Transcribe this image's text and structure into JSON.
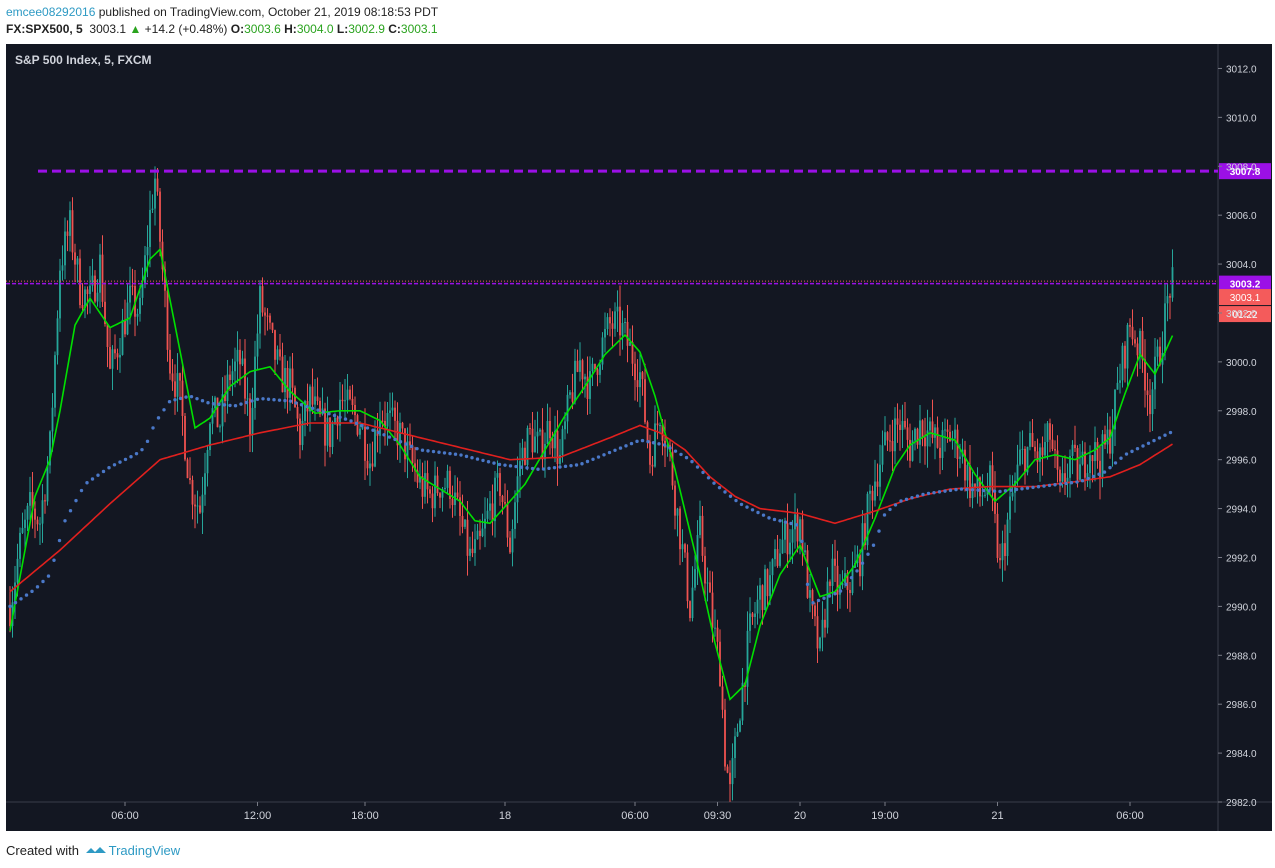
{
  "header": {
    "author": "emcee08292016",
    "published_text": " published on TradingView.com, October 21, 2019 08:18:53 PDT"
  },
  "symbol_line": {
    "symbol": "FX:SPX500, 5",
    "last": "3003.1",
    "change": "+14.2 (+0.48%)",
    "o_label": "O:",
    "o": "3003.6",
    "h_label": "H:",
    "h": "3004.0",
    "l_label": "L:",
    "l": "3002.9",
    "c_label": "C:",
    "c": "3003.1"
  },
  "footer": {
    "created": "Created with",
    "brand": "TradingView"
  },
  "colors": {
    "background": "#131722",
    "up": "#26a69a",
    "down": "#ef5350",
    "ma_fast": "#00e000",
    "ma_mid": "#e0201e",
    "ma_slow": "#4a78c8",
    "level": "#9b10e6",
    "price_tag": "#f45b5b"
  },
  "chart_data": {
    "type": "candlestick",
    "title": "S&P 500 Index, 5, FXCM",
    "ylim": [
      2982,
      3013
    ],
    "y_ticks": [
      2982,
      2984,
      2986,
      2988,
      2990,
      2992,
      2994,
      2996,
      2998,
      3000,
      3002,
      3004,
      3006,
      3008,
      3010,
      3012
    ],
    "y_tick_labels": [
      "2982.0",
      "2984.0",
      "2986.0",
      "2988.0",
      "2990.0",
      "2992.0",
      "2994.0",
      "2996.0",
      "2998.0",
      "3000.0",
      "3002.0",
      "3004.0",
      "3006.0",
      "3008.0",
      "3010.0",
      "3012.0"
    ],
    "x_ticks": [
      {
        "label": "06:00",
        "bar": 46
      },
      {
        "label": "12:00",
        "bar": 99
      },
      {
        "label": "18:00",
        "bar": 142
      },
      {
        "label": "18",
        "bar": 198
      },
      {
        "label": "06:00",
        "bar": 250
      },
      {
        "label": "09:30",
        "bar": 283
      },
      {
        "label": "20",
        "bar": 316
      },
      {
        "label": "19:00",
        "bar": 350
      },
      {
        "label": "21",
        "bar": 395
      },
      {
        "label": "06:00",
        "bar": 448
      }
    ],
    "bar_count": 466,
    "price_levels": [
      {
        "value": 3007.8,
        "label": "3007.8",
        "style": "dashed-thick"
      },
      {
        "value": 3003.2,
        "label": "3003.2",
        "style": "dashed"
      }
    ],
    "last_price": {
      "value": 3003.1,
      "label": "3003.1",
      "countdown": "01:22"
    },
    "keypoints": [
      [
        0,
        2990.0
      ],
      [
        4,
        2992.5
      ],
      [
        8,
        2994.0
      ],
      [
        12,
        2993.5
      ],
      [
        16,
        2996.5
      ],
      [
        20,
        3004.0
      ],
      [
        24,
        3005.5
      ],
      [
        28,
        3003.0
      ],
      [
        32,
        3002.5
      ],
      [
        36,
        3004.0
      ],
      [
        40,
        2999.5
      ],
      [
        44,
        3001.0
      ],
      [
        48,
        3002.5
      ],
      [
        52,
        3002.0
      ],
      [
        56,
        3006.0
      ],
      [
        58,
        3007.5
      ],
      [
        60,
        3005.0
      ],
      [
        64,
        3000.0
      ],
      [
        68,
        2998.5
      ],
      [
        72,
        2995.0
      ],
      [
        76,
        2994.0
      ],
      [
        80,
        2998.0
      ],
      [
        84,
        2997.5
      ],
      [
        88,
        2999.5
      ],
      [
        92,
        3000.0
      ],
      [
        96,
        2997.5
      ],
      [
        100,
        3002.5
      ],
      [
        104,
        3001.0
      ],
      [
        108,
        2999.5
      ],
      [
        112,
        2999.0
      ],
      [
        116,
        2997.0
      ],
      [
        120,
        2998.5
      ],
      [
        124,
        2997.5
      ],
      [
        128,
        2997.0
      ],
      [
        132,
        2998.5
      ],
      [
        136,
        2998.0
      ],
      [
        140,
        2997.5
      ],
      [
        144,
        2996.0
      ],
      [
        148,
        2998.0
      ],
      [
        152,
        2997.5
      ],
      [
        156,
        2997.0
      ],
      [
        160,
        2996.0
      ],
      [
        164,
        2995.0
      ],
      [
        168,
        2994.5
      ],
      [
        172,
        2995.0
      ],
      [
        176,
        2995.0
      ],
      [
        180,
        2993.5
      ],
      [
        184,
        2992.0
      ],
      [
        188,
        2992.5
      ],
      [
        192,
        2994.0
      ],
      [
        196,
        2995.0
      ],
      [
        200,
        2992.5
      ],
      [
        204,
        2996.0
      ],
      [
        208,
        2997.0
      ],
      [
        212,
        2996.5
      ],
      [
        216,
        2997.5
      ],
      [
        220,
        2996.0
      ],
      [
        224,
        2998.5
      ],
      [
        228,
        3000.0
      ],
      [
        232,
        2999.0
      ],
      [
        236,
        3000.5
      ],
      [
        240,
        3001.5
      ],
      [
        244,
        3001.5
      ],
      [
        248,
        3000.5
      ],
      [
        252,
        2999.5
      ],
      [
        256,
        2996.0
      ],
      [
        260,
        2998.0
      ],
      [
        264,
        2996.0
      ],
      [
        268,
        2993.0
      ],
      [
        272,
        2990.0
      ],
      [
        276,
        2993.0
      ],
      [
        280,
        2990.0
      ],
      [
        284,
        2987.5
      ],
      [
        286,
        2984.0
      ],
      [
        288,
        2982.3
      ],
      [
        292,
        2986.0
      ],
      [
        296,
        2989.0
      ],
      [
        300,
        2990.5
      ],
      [
        304,
        2991.0
      ],
      [
        308,
        2992.5
      ],
      [
        312,
        2993.0
      ],
      [
        316,
        2993.5
      ],
      [
        320,
        2990.0
      ],
      [
        324,
        2988.0
      ],
      [
        328,
        2991.5
      ],
      [
        332,
        2990.5
      ],
      [
        336,
        2991.0
      ],
      [
        340,
        2992.0
      ],
      [
        344,
        2994.5
      ],
      [
        348,
        2996.0
      ],
      [
        352,
        2997.0
      ],
      [
        356,
        2997.5
      ],
      [
        360,
        2996.5
      ],
      [
        364,
        2997.5
      ],
      [
        368,
        2997.0
      ],
      [
        372,
        2996.5
      ],
      [
        376,
        2997.0
      ],
      [
        380,
        2996.5
      ],
      [
        384,
        2995.0
      ],
      [
        388,
        2994.5
      ],
      [
        392,
        2995.0
      ],
      [
        396,
        2991.5
      ],
      [
        400,
        2994.0
      ],
      [
        404,
        2996.0
      ],
      [
        408,
        2996.5
      ],
      [
        412,
        2996.0
      ],
      [
        416,
        2997.0
      ],
      [
        420,
        2994.5
      ],
      [
        424,
        2996.0
      ],
      [
        428,
        2995.5
      ],
      [
        432,
        2996.5
      ],
      [
        436,
        2996.0
      ],
      [
        440,
        2997.0
      ],
      [
        444,
        2999.5
      ],
      [
        448,
        3001.5
      ],
      [
        452,
        3000.5
      ],
      [
        456,
        2998.5
      ],
      [
        460,
        3000.5
      ],
      [
        464,
        3003.1
      ]
    ],
    "moving_averages": [
      {
        "color_key": "ma_fast",
        "style": "line",
        "points": [
          [
            0,
            2989.0
          ],
          [
            10,
            2994.5
          ],
          [
            16,
            2996.0
          ],
          [
            20,
            2998.0
          ],
          [
            26,
            3001.5
          ],
          [
            32,
            3002.6
          ],
          [
            40,
            3001.4
          ],
          [
            48,
            3001.8
          ],
          [
            56,
            3004.2
          ],
          [
            60,
            3004.6
          ],
          [
            66,
            3001.5
          ],
          [
            74,
            2997.3
          ],
          [
            80,
            2997.7
          ],
          [
            88,
            2999.0
          ],
          [
            96,
            2999.6
          ],
          [
            104,
            2999.8
          ],
          [
            112,
            2998.8
          ],
          [
            122,
            2997.9
          ],
          [
            132,
            2998.0
          ],
          [
            140,
            2998.0
          ],
          [
            148,
            2997.6
          ],
          [
            156,
            2996.6
          ],
          [
            164,
            2995.3
          ],
          [
            172,
            2994.8
          ],
          [
            180,
            2994.3
          ],
          [
            186,
            2993.5
          ],
          [
            192,
            2993.4
          ],
          [
            200,
            2994.3
          ],
          [
            206,
            2995.0
          ],
          [
            214,
            2996.4
          ],
          [
            222,
            2997.8
          ],
          [
            230,
            2999.0
          ],
          [
            238,
            3000.3
          ],
          [
            246,
            3001.1
          ],
          [
            252,
            3000.4
          ],
          [
            258,
            2998.6
          ],
          [
            266,
            2995.6
          ],
          [
            274,
            2992.2
          ],
          [
            282,
            2988.5
          ],
          [
            288,
            2986.2
          ],
          [
            294,
            2986.8
          ],
          [
            300,
            2989.2
          ],
          [
            308,
            2991.3
          ],
          [
            316,
            2992.5
          ],
          [
            324,
            2990.4
          ],
          [
            330,
            2990.6
          ],
          [
            338,
            2991.7
          ],
          [
            346,
            2993.6
          ],
          [
            354,
            2995.7
          ],
          [
            360,
            2996.6
          ],
          [
            368,
            2997.1
          ],
          [
            378,
            2996.8
          ],
          [
            386,
            2995.4
          ],
          [
            394,
            2994.3
          ],
          [
            402,
            2995.0
          ],
          [
            410,
            2996.0
          ],
          [
            418,
            2996.2
          ],
          [
            426,
            2996.0
          ],
          [
            434,
            2996.4
          ],
          [
            440,
            2996.9
          ],
          [
            446,
            2998.7
          ],
          [
            452,
            3000.3
          ],
          [
            458,
            2999.5
          ],
          [
            466,
            3001.3
          ]
        ]
      },
      {
        "color_key": "ma_mid",
        "style": "line",
        "points": [
          [
            0,
            2990.6
          ],
          [
            20,
            2992.3
          ],
          [
            40,
            2994.2
          ],
          [
            60,
            2996.0
          ],
          [
            80,
            2996.6
          ],
          [
            100,
            2997.1
          ],
          [
            120,
            2997.5
          ],
          [
            140,
            2997.5
          ],
          [
            160,
            2997.0
          ],
          [
            180,
            2996.5
          ],
          [
            200,
            2996.0
          ],
          [
            220,
            2996.1
          ],
          [
            240,
            2996.9
          ],
          [
            252,
            2997.4
          ],
          [
            260,
            2997.1
          ],
          [
            270,
            2996.4
          ],
          [
            280,
            2995.3
          ],
          [
            290,
            2994.5
          ],
          [
            300,
            2994.0
          ],
          [
            316,
            2993.8
          ],
          [
            330,
            2993.4
          ],
          [
            346,
            2993.9
          ],
          [
            360,
            2994.4
          ],
          [
            376,
            2994.8
          ],
          [
            392,
            2994.9
          ],
          [
            410,
            2994.9
          ],
          [
            426,
            2995.1
          ],
          [
            440,
            2995.3
          ],
          [
            452,
            2995.8
          ],
          [
            466,
            2996.7
          ]
        ]
      },
      {
        "color_key": "ma_slow",
        "style": "dotted",
        "points": [
          [
            0,
            2990.0
          ],
          [
            10,
            2990.7
          ],
          [
            16,
            2991.3
          ],
          [
            22,
            2993.5
          ],
          [
            30,
            2995.0
          ],
          [
            40,
            2995.7
          ],
          [
            50,
            2996.2
          ],
          [
            54,
            2996.5
          ],
          [
            58,
            2997.5
          ],
          [
            64,
            2998.4
          ],
          [
            72,
            2998.6
          ],
          [
            80,
            2998.3
          ],
          [
            90,
            2998.2
          ],
          [
            100,
            2998.5
          ],
          [
            112,
            2998.4
          ],
          [
            124,
            2998.0
          ],
          [
            136,
            2997.6
          ],
          [
            150,
            2997.0
          ],
          [
            164,
            2996.4
          ],
          [
            180,
            2996.2
          ],
          [
            196,
            2995.8
          ],
          [
            212,
            2995.6
          ],
          [
            228,
            2995.8
          ],
          [
            240,
            2996.3
          ],
          [
            252,
            2996.8
          ],
          [
            262,
            2996.6
          ],
          [
            272,
            2996.0
          ],
          [
            282,
            2995.0
          ],
          [
            292,
            2994.2
          ],
          [
            304,
            2993.6
          ],
          [
            316,
            2993.3
          ],
          [
            320,
            2990.1
          ],
          [
            332,
            2990.6
          ],
          [
            340,
            2991.6
          ],
          [
            346,
            2992.6
          ],
          [
            350,
            2993.8
          ],
          [
            356,
            2994.3
          ],
          [
            366,
            2994.6
          ],
          [
            380,
            2994.8
          ],
          [
            396,
            2994.7
          ],
          [
            412,
            2994.9
          ],
          [
            428,
            2995.1
          ],
          [
            438,
            2995.5
          ],
          [
            446,
            2996.2
          ],
          [
            454,
            2996.6
          ],
          [
            466,
            2997.2
          ]
        ]
      }
    ]
  }
}
